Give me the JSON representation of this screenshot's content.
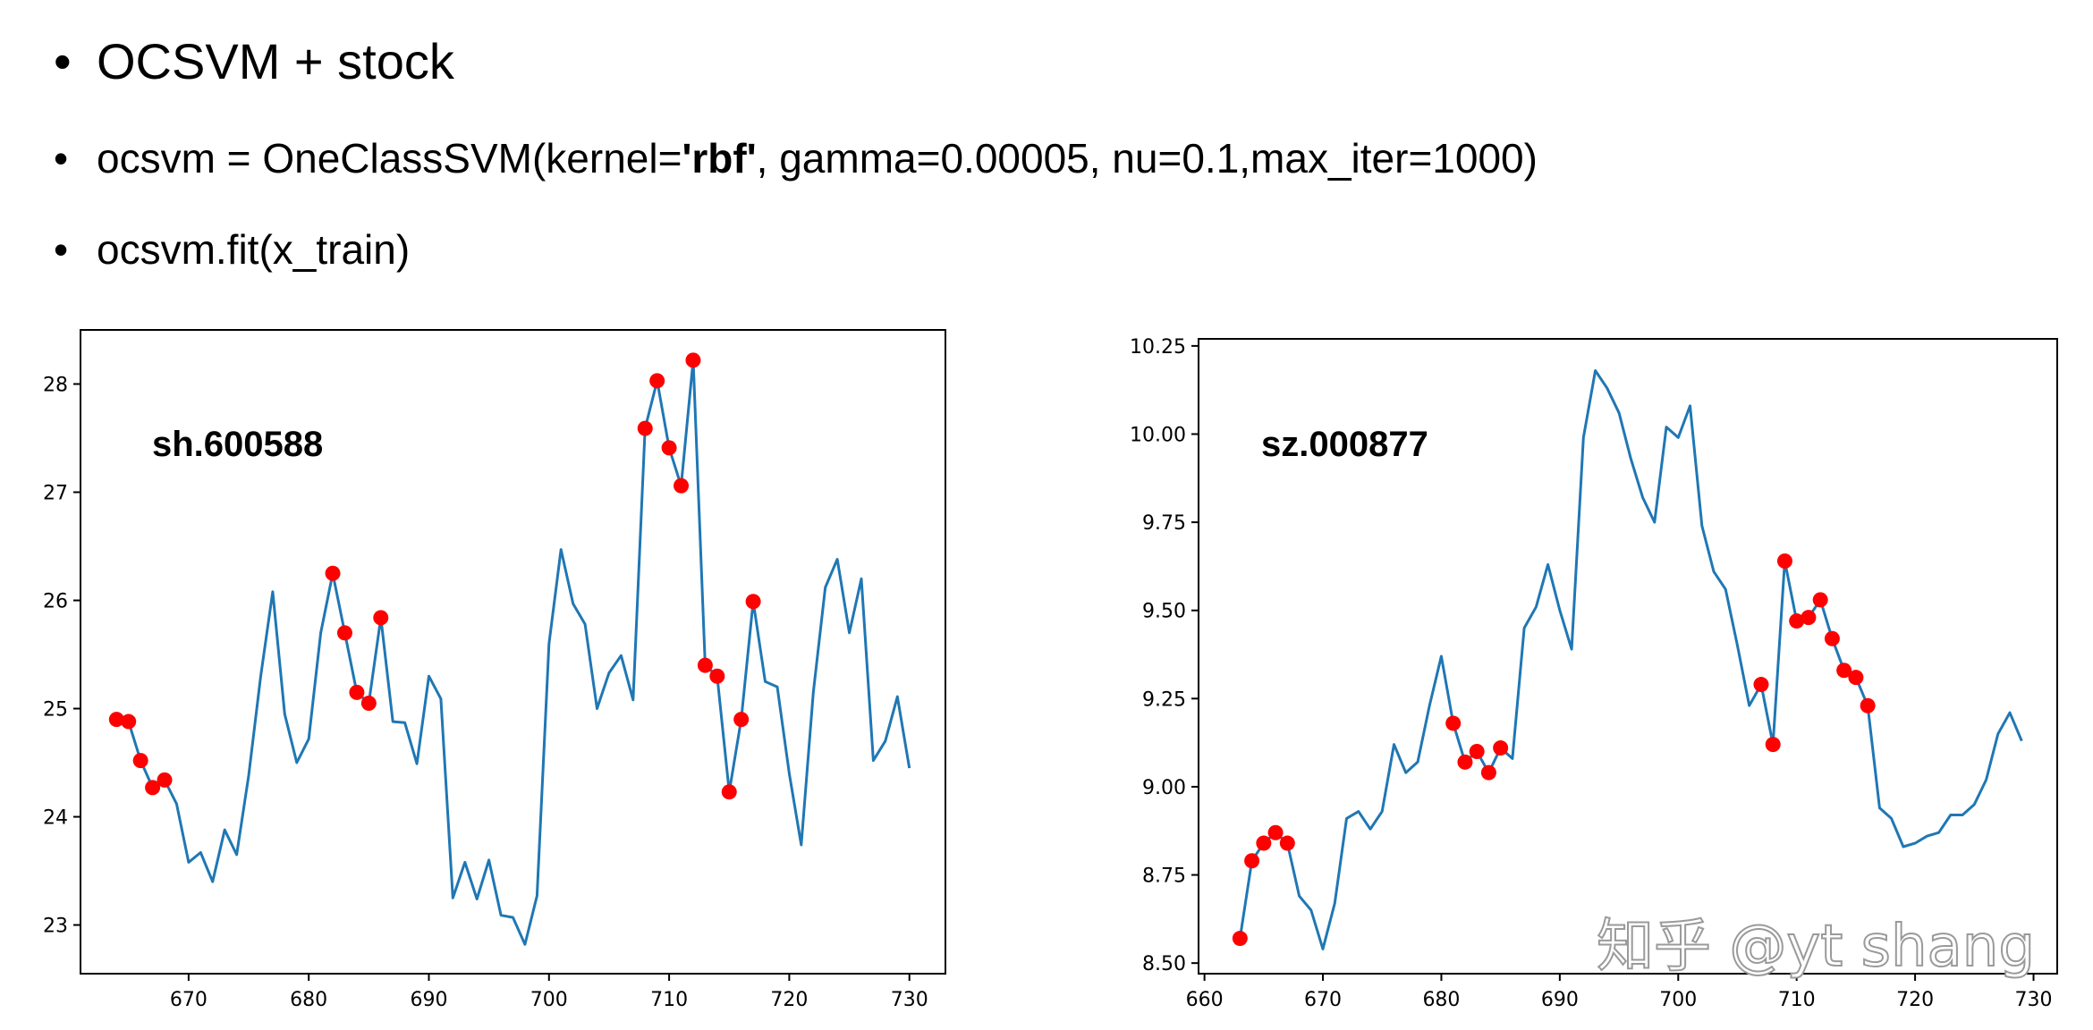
{
  "bullets": {
    "b1_bullet": "•",
    "b1_text": "OCSVM + stock",
    "b2_bullet": "•",
    "b2_pre": "ocsvm = OneClassSVM(kernel=",
    "b2_strong": "'rbf'",
    "b2_post": ", gamma=0.00005, nu=0.1,max_iter=1000)",
    "b3_bullet": "•",
    "b3_text": "ocsvm.fit(x_train)"
  },
  "watermark": "知乎 @yt shang",
  "colors": {
    "line": "#1f77b4",
    "anomaly": "#ff0000",
    "axis": "#000000"
  },
  "chart_data": [
    {
      "type": "line",
      "title": "sh.600588",
      "xlim": [
        661,
        733
      ],
      "ylim": [
        22.55,
        28.5
      ],
      "xticks": [
        670,
        680,
        690,
        700,
        710,
        720,
        730
      ],
      "yticks": [
        23,
        24,
        25,
        26,
        27,
        28
      ],
      "series": [
        {
          "x": [
            664,
            665,
            666,
            667,
            668,
            669,
            670,
            671,
            672,
            673,
            674,
            675,
            676,
            677,
            678,
            679,
            680,
            681,
            682,
            683,
            684,
            685,
            686,
            687,
            688,
            689,
            690,
            691,
            692,
            693,
            694,
            695,
            696,
            697,
            698,
            699,
            700,
            701,
            702,
            703,
            704,
            705,
            706,
            707,
            708,
            709,
            710,
            711,
            712,
            713,
            714,
            715,
            716,
            717,
            718,
            719,
            720,
            721,
            722,
            723,
            724,
            725,
            726,
            727,
            728,
            729,
            730
          ],
          "y": [
            24.9,
            24.88,
            24.52,
            24.27,
            24.34,
            24.12,
            23.58,
            23.67,
            23.4,
            23.88,
            23.65,
            24.38,
            25.3,
            26.08,
            24.95,
            24.5,
            24.72,
            25.7,
            26.25,
            25.7,
            25.15,
            25.05,
            25.84,
            24.88,
            24.87,
            24.49,
            25.3,
            25.09,
            23.25,
            23.58,
            23.24,
            23.6,
            23.09,
            23.07,
            22.82,
            23.27,
            25.6,
            26.47,
            25.97,
            25.78,
            25.0,
            25.33,
            25.49,
            25.08,
            27.59,
            28.03,
            27.41,
            27.06,
            28.22,
            25.4,
            25.3,
            24.23,
            24.9,
            25.99,
            25.25,
            25.2,
            24.4,
            23.74,
            25.15,
            26.12,
            26.38,
            25.7,
            26.2,
            24.52,
            24.7,
            25.11,
            24.45
          ]
        }
      ],
      "anomalies": {
        "x": [
          664,
          665,
          666,
          667,
          668,
          682,
          683,
          684,
          685,
          686,
          708,
          709,
          710,
          711,
          712,
          713,
          714,
          715,
          716,
          717
        ],
        "y": [
          24.9,
          24.88,
          24.52,
          24.27,
          24.34,
          26.25,
          25.7,
          25.15,
          25.05,
          25.84,
          27.59,
          28.03,
          27.41,
          27.06,
          28.22,
          25.4,
          25.3,
          24.23,
          24.9,
          25.99
        ]
      }
    },
    {
      "type": "line",
      "title": "sz.000877",
      "xlim": [
        659.5,
        732
      ],
      "ylim": [
        8.47,
        10.27
      ],
      "xticks": [
        660,
        670,
        680,
        690,
        700,
        710,
        720,
        730
      ],
      "yticks": [
        8.5,
        8.75,
        9.0,
        9.25,
        9.5,
        9.75,
        10.0,
        10.25
      ],
      "ytick_labels": [
        "8.50",
        "8.75",
        "9.00",
        "9.25",
        "9.50",
        "9.75",
        "10.00",
        "10.25"
      ],
      "series": [
        {
          "x": [
            663,
            664,
            665,
            666,
            667,
            668,
            669,
            670,
            671,
            672,
            673,
            674,
            675,
            676,
            677,
            678,
            679,
            680,
            681,
            682,
            683,
            684,
            685,
            686,
            687,
            688,
            689,
            690,
            691,
            692,
            693,
            694,
            695,
            696,
            697,
            698,
            699,
            700,
            701,
            702,
            703,
            704,
            705,
            706,
            707,
            708,
            709,
            710,
            711,
            712,
            713,
            714,
            715,
            716,
            717,
            718,
            719,
            720,
            721,
            722,
            723,
            724,
            725,
            726,
            727,
            728,
            729
          ],
          "y": [
            8.57,
            8.79,
            8.84,
            8.87,
            8.84,
            8.69,
            8.65,
            8.54,
            8.67,
            8.91,
            8.93,
            8.88,
            8.93,
            9.12,
            9.04,
            9.07,
            9.23,
            9.37,
            9.18,
            9.07,
            9.1,
            9.04,
            9.11,
            9.08,
            9.45,
            9.51,
            9.63,
            9.5,
            9.39,
            9.99,
            10.18,
            10.13,
            10.06,
            9.93,
            9.82,
            9.75,
            10.02,
            9.99,
            10.08,
            9.74,
            9.61,
            9.56,
            9.4,
            9.23,
            9.29,
            9.12,
            9.64,
            9.47,
            9.48,
            9.53,
            9.42,
            9.33,
            9.31,
            9.23,
            8.94,
            8.91,
            8.83,
            8.84,
            8.86,
            8.87,
            8.92,
            8.92,
            8.95,
            9.02,
            9.15,
            9.21,
            9.13
          ]
        }
      ],
      "anomalies": {
        "x": [
          663,
          664,
          665,
          666,
          667,
          681,
          682,
          683,
          684,
          685,
          707,
          708,
          709,
          710,
          711,
          712,
          713,
          714,
          715,
          716
        ],
        "y": [
          8.57,
          8.79,
          8.84,
          8.87,
          8.84,
          9.18,
          9.07,
          9.1,
          9.04,
          9.11,
          9.29,
          9.12,
          9.64,
          9.47,
          9.48,
          9.53,
          9.42,
          9.33,
          9.31,
          9.23
        ]
      }
    }
  ]
}
